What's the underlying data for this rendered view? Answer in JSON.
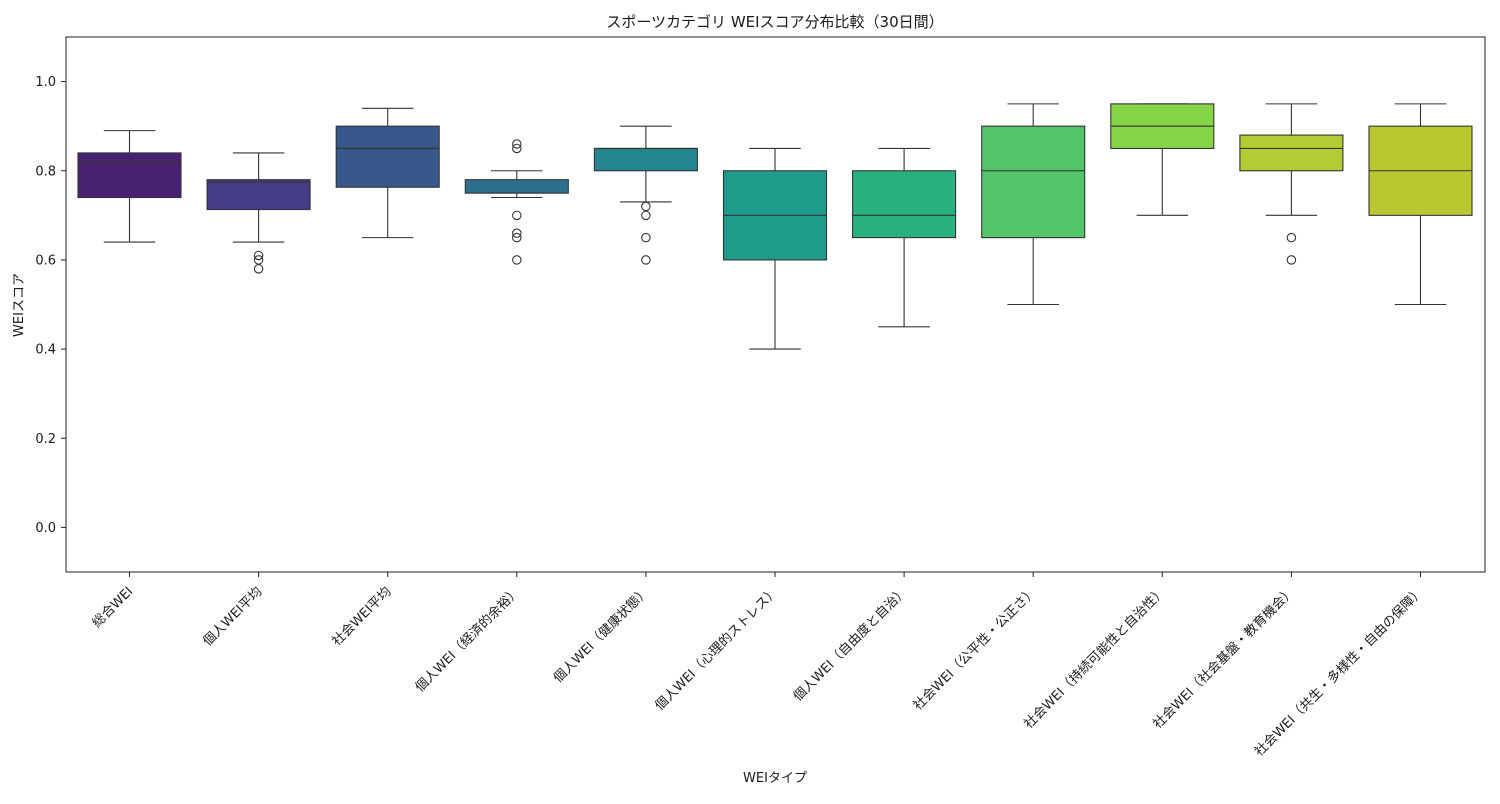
{
  "chart_data": {
    "type": "box",
    "title": "スポーツカテゴリ WEIスコア分布比較（30日間）",
    "xlabel": "WEIタイプ",
    "ylabel": "WEIスコア",
    "ylim": [
      -0.1,
      1.1
    ],
    "yticks": [
      "0.0",
      "0.2",
      "0.4",
      "0.6",
      "0.8",
      "1.0"
    ],
    "grid": false,
    "categories": [
      "総合WEI",
      "個人WEI平均",
      "社会WEI平均",
      "個人WEI（経済的余裕）",
      "個人WEI（健康状態）",
      "個人WEI（心理的ストレス）",
      "個人WEI（自由度と自治）",
      "社会WEI（公平性・公正さ）",
      "社会WEI（持続可能性と自治性）",
      "社会WEI（社会基盤・教育機会）",
      "社会WEI（共生・多様性・自由の保障）"
    ],
    "boxes": [
      {
        "whisker_low": 0.64,
        "q1": 0.74,
        "median": 0.82,
        "q3": 0.84,
        "whisker_high": 0.89,
        "outliers": [],
        "color": "#482173"
      },
      {
        "whisker_low": 0.64,
        "q1": 0.713,
        "median": 0.775,
        "q3": 0.78,
        "whisker_high": 0.84,
        "outliers": [
          0.58,
          0.6,
          0.61
        ],
        "color": "#433e85"
      },
      {
        "whisker_low": 0.65,
        "q1": 0.763,
        "median": 0.85,
        "q3": 0.9,
        "whisker_high": 0.94,
        "outliers": [],
        "color": "#38588c"
      },
      {
        "whisker_low": 0.74,
        "q1": 0.75,
        "median": 0.75,
        "q3": 0.78,
        "whisker_high": 0.8,
        "outliers": [
          0.6,
          0.65,
          0.66,
          0.7,
          0.85,
          0.86
        ],
        "color": "#2d708e"
      },
      {
        "whisker_low": 0.73,
        "q1": 0.8,
        "median": 0.85,
        "q3": 0.85,
        "whisker_high": 0.9,
        "outliers": [
          0.6,
          0.65,
          0.7,
          0.72
        ],
        "color": "#25858e"
      },
      {
        "whisker_low": 0.4,
        "q1": 0.6,
        "median": 0.7,
        "q3": 0.8,
        "whisker_high": 0.85,
        "outliers": [],
        "color": "#1e9b8a"
      },
      {
        "whisker_low": 0.45,
        "q1": 0.65,
        "median": 0.7,
        "q3": 0.8,
        "whisker_high": 0.85,
        "outliers": [],
        "color": "#2ab07f"
      },
      {
        "whisker_low": 0.5,
        "q1": 0.65,
        "median": 0.8,
        "q3": 0.9,
        "whisker_high": 0.95,
        "outliers": [],
        "color": "#52c569"
      },
      {
        "whisker_low": 0.7,
        "q1": 0.85,
        "median": 0.9,
        "q3": 0.95,
        "whisker_high": 0.95,
        "outliers": [],
        "color": "#86d549"
      },
      {
        "whisker_low": 0.7,
        "q1": 0.8,
        "median": 0.85,
        "q3": 0.88,
        "whisker_high": 0.95,
        "outliers": [
          0.6,
          0.65
        ],
        "color": "#c2df23"
      },
      {
        "whisker_low": 0.5,
        "q1": 0.7,
        "median": 0.8,
        "q3": 0.9,
        "whisker_high": 0.95,
        "outliers": [],
        "color": "#fde725"
      }
    ]
  },
  "colors": {
    "palette": [
      "#482173",
      "#433e85",
      "#38588c",
      "#2d708e",
      "#25858e",
      "#1e9b8a",
      "#2ab07f",
      "#52c569",
      "#86d549",
      "#b5cb34",
      "#b9c831"
    ],
    "line": "#333333"
  }
}
